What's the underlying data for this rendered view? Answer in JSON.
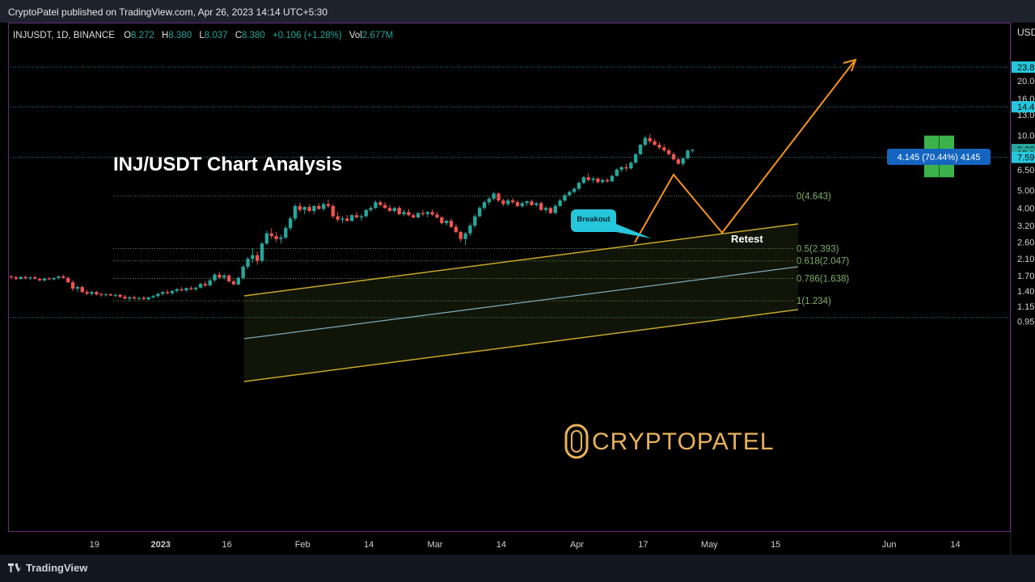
{
  "header": {
    "published": "CryptoPatel published on TradingView.com, Apr 26, 2023 14:14 UTC+5:30"
  },
  "legend": {
    "symbol": "INJUSDT, 1D, BINANCE",
    "o_label": "O",
    "o_value": "8.272",
    "h_label": "H",
    "h_value": "8.380",
    "l_label": "L",
    "l_value": "8.037",
    "c_label": "C",
    "c_value": "8.380",
    "change": "+0.106 (+1.28%)",
    "vol_label": "Vol",
    "vol_value": "2.677M"
  },
  "footer": {
    "brand": "TradingView"
  },
  "colors": {
    "up": "#26a69a",
    "down": "#ef5350",
    "accent": "#f7931a",
    "fib": "#7fb069",
    "channel": "#c8a829"
  },
  "chart_data": {
    "type": "candlestick",
    "title": "INJ/USDT Chart Analysis",
    "watermark": "CRYPTOPATEL",
    "currency": "USD",
    "y_scale": "log",
    "ylim": [
      0.85,
      27
    ],
    "x_ticks": [
      "19",
      "2023",
      "16",
      "Feb",
      "14",
      "Mar",
      "14",
      "Apr",
      "17",
      "May",
      "15",
      "Jun",
      "14"
    ],
    "y_ticks": [
      "20.00",
      "16.00",
      "13.00",
      "10.00",
      "6.50",
      "5.00",
      "4.00",
      "3.20",
      "2.60",
      "2.10",
      "1.70",
      "1.40",
      "1.15",
      "0.95"
    ],
    "price_tags": [
      {
        "label": "23.8",
        "value": 23.8,
        "color": "#26c6da"
      },
      {
        "label": "14.4",
        "value": 14.4,
        "color": "#26c6da"
      },
      {
        "label": "8.38",
        "value": 8.38,
        "color": "#26a69a"
      },
      {
        "label": "15:1",
        "value": 7.95,
        "color": "#26a69a"
      },
      {
        "label": "7.59",
        "value": 7.59,
        "color": "#26c6da"
      }
    ],
    "fib_levels": [
      {
        "label": "0(4.643)",
        "value": 4.643
      },
      {
        "label": "0.5(2.393)",
        "value": 2.393
      },
      {
        "label": "0.618(2.047)",
        "value": 2.047
      },
      {
        "label": "0.786(1.638)",
        "value": 1.638
      },
      {
        "label": "1(1.234)",
        "value": 1.234
      }
    ],
    "horizontal_levels": [
      23.8,
      14.4,
      7.59,
      1.0
    ],
    "annotations": {
      "breakout": "Breakout",
      "retest": "Retest"
    },
    "measure": {
      "label": "4.145 (70.44%) 4145",
      "low": 5.9,
      "high": 10.0
    },
    "series": [
      {
        "name": "INJUSDT",
        "ohlc": [
          [
            1.68,
            1.71,
            1.62,
            1.66
          ],
          [
            1.66,
            1.7,
            1.6,
            1.63
          ],
          [
            1.63,
            1.69,
            1.61,
            1.67
          ],
          [
            1.67,
            1.7,
            1.62,
            1.64
          ],
          [
            1.64,
            1.68,
            1.6,
            1.66
          ],
          [
            1.66,
            1.7,
            1.62,
            1.63
          ],
          [
            1.63,
            1.66,
            1.58,
            1.6
          ],
          [
            1.6,
            1.65,
            1.57,
            1.64
          ],
          [
            1.64,
            1.67,
            1.6,
            1.62
          ],
          [
            1.62,
            1.66,
            1.6,
            1.65
          ],
          [
            1.65,
            1.7,
            1.62,
            1.68
          ],
          [
            1.68,
            1.72,
            1.63,
            1.65
          ],
          [
            1.65,
            1.68,
            1.55,
            1.56
          ],
          [
            1.56,
            1.6,
            1.4,
            1.44
          ],
          [
            1.44,
            1.5,
            1.38,
            1.47
          ],
          [
            1.47,
            1.5,
            1.36,
            1.38
          ],
          [
            1.38,
            1.42,
            1.33,
            1.35
          ],
          [
            1.35,
            1.4,
            1.32,
            1.38
          ],
          [
            1.38,
            1.4,
            1.32,
            1.34
          ],
          [
            1.34,
            1.37,
            1.3,
            1.33
          ],
          [
            1.33,
            1.36,
            1.3,
            1.34
          ],
          [
            1.34,
            1.36,
            1.31,
            1.32
          ],
          [
            1.32,
            1.35,
            1.29,
            1.33
          ],
          [
            1.33,
            1.35,
            1.28,
            1.3
          ],
          [
            1.3,
            1.33,
            1.26,
            1.27
          ],
          [
            1.27,
            1.31,
            1.23,
            1.29
          ],
          [
            1.29,
            1.32,
            1.25,
            1.27
          ],
          [
            1.27,
            1.3,
            1.24,
            1.28
          ],
          [
            1.28,
            1.31,
            1.25,
            1.26
          ],
          [
            1.26,
            1.3,
            1.24,
            1.29
          ],
          [
            1.29,
            1.33,
            1.27,
            1.31
          ],
          [
            1.31,
            1.36,
            1.29,
            1.35
          ],
          [
            1.35,
            1.4,
            1.32,
            1.38
          ],
          [
            1.38,
            1.42,
            1.34,
            1.36
          ],
          [
            1.36,
            1.41,
            1.33,
            1.4
          ],
          [
            1.4,
            1.45,
            1.37,
            1.43
          ],
          [
            1.43,
            1.47,
            1.39,
            1.41
          ],
          [
            1.41,
            1.46,
            1.38,
            1.45
          ],
          [
            1.45,
            1.49,
            1.41,
            1.43
          ],
          [
            1.43,
            1.47,
            1.4,
            1.46
          ],
          [
            1.46,
            1.55,
            1.44,
            1.53
          ],
          [
            1.53,
            1.58,
            1.47,
            1.5
          ],
          [
            1.5,
            1.63,
            1.48,
            1.6
          ],
          [
            1.6,
            1.75,
            1.57,
            1.72
          ],
          [
            1.72,
            1.78,
            1.63,
            1.66
          ],
          [
            1.66,
            1.74,
            1.62,
            1.7
          ],
          [
            1.7,
            1.73,
            1.55,
            1.58
          ],
          [
            1.58,
            1.62,
            1.5,
            1.52
          ],
          [
            1.52,
            1.68,
            1.5,
            1.65
          ],
          [
            1.65,
            1.95,
            1.62,
            1.9
          ],
          [
            1.9,
            2.15,
            1.85,
            2.1
          ],
          [
            2.1,
            2.4,
            2.0,
            2.2
          ],
          [
            2.2,
            2.3,
            1.95,
            2.05
          ],
          [
            2.05,
            2.6,
            2.0,
            2.55
          ],
          [
            2.55,
            3.0,
            2.5,
            2.9
          ],
          [
            2.9,
            3.1,
            2.7,
            2.8
          ],
          [
            2.8,
            2.95,
            2.6,
            2.7
          ],
          [
            2.7,
            2.85,
            2.55,
            2.75
          ],
          [
            2.75,
            3.2,
            2.7,
            3.1
          ],
          [
            3.1,
            3.6,
            3.0,
            3.5
          ],
          [
            3.5,
            4.2,
            3.4,
            4.1
          ],
          [
            4.1,
            4.3,
            3.8,
            3.9
          ],
          [
            3.9,
            4.1,
            3.7,
            4.05
          ],
          [
            4.05,
            4.2,
            3.8,
            3.85
          ],
          [
            3.85,
            4.15,
            3.7,
            4.1
          ],
          [
            4.1,
            4.25,
            3.9,
            3.95
          ],
          [
            3.95,
            4.3,
            3.85,
            4.2
          ],
          [
            4.2,
            4.45,
            4.0,
            4.1
          ],
          [
            4.1,
            4.2,
            3.5,
            3.6
          ],
          [
            3.6,
            3.8,
            3.35,
            3.45
          ],
          [
            3.45,
            3.6,
            3.3,
            3.5
          ],
          [
            3.5,
            3.65,
            3.35,
            3.4
          ],
          [
            3.4,
            3.7,
            3.35,
            3.65
          ],
          [
            3.65,
            3.8,
            3.5,
            3.55
          ],
          [
            3.55,
            3.7,
            3.4,
            3.6
          ],
          [
            3.6,
            3.95,
            3.55,
            3.9
          ],
          [
            3.9,
            4.1,
            3.8,
            4.0
          ],
          [
            4.0,
            4.4,
            3.95,
            4.3
          ],
          [
            4.3,
            4.4,
            4.1,
            4.15
          ],
          [
            4.15,
            4.3,
            3.95,
            4.0
          ],
          [
            4.0,
            4.15,
            3.8,
            3.85
          ],
          [
            3.85,
            4.05,
            3.75,
            4.0
          ],
          [
            4.0,
            4.1,
            3.65,
            3.7
          ],
          [
            3.7,
            3.9,
            3.6,
            3.8
          ],
          [
            3.8,
            3.95,
            3.6,
            3.65
          ],
          [
            3.65,
            3.75,
            3.5,
            3.55
          ],
          [
            3.55,
            3.8,
            3.5,
            3.75
          ],
          [
            3.75,
            3.9,
            3.6,
            3.7
          ],
          [
            3.7,
            3.85,
            3.55,
            3.8
          ],
          [
            3.8,
            3.92,
            3.62,
            3.68
          ],
          [
            3.68,
            3.8,
            3.5,
            3.55
          ],
          [
            3.55,
            3.6,
            3.25,
            3.3
          ],
          [
            3.3,
            3.45,
            3.2,
            3.4
          ],
          [
            3.4,
            3.5,
            3.1,
            3.15
          ],
          [
            3.15,
            3.25,
            2.9,
            2.95
          ],
          [
            2.95,
            3.0,
            2.6,
            2.7
          ],
          [
            2.7,
            2.95,
            2.5,
            2.9
          ],
          [
            2.9,
            3.3,
            2.8,
            3.2
          ],
          [
            3.2,
            3.7,
            3.1,
            3.6
          ],
          [
            3.6,
            4.1,
            3.55,
            4.0
          ],
          [
            4.0,
            4.4,
            3.9,
            4.3
          ],
          [
            4.3,
            4.6,
            4.15,
            4.5
          ],
          [
            4.5,
            4.9,
            4.4,
            4.8
          ],
          [
            4.8,
            4.85,
            4.3,
            4.4
          ],
          [
            4.4,
            4.5,
            4.1,
            4.2
          ],
          [
            4.2,
            4.5,
            4.1,
            4.4
          ],
          [
            4.4,
            4.55,
            4.2,
            4.3
          ],
          [
            4.3,
            4.4,
            4.05,
            4.1
          ],
          [
            4.1,
            4.35,
            4.0,
            4.25
          ],
          [
            4.25,
            4.4,
            4.1,
            4.35
          ],
          [
            4.35,
            4.45,
            4.1,
            4.15
          ],
          [
            4.15,
            4.3,
            4.05,
            4.25
          ],
          [
            4.25,
            4.35,
            3.85,
            3.9
          ],
          [
            3.9,
            4.1,
            3.75,
            4.0
          ],
          [
            4.0,
            4.05,
            3.7,
            3.75
          ],
          [
            3.75,
            4.2,
            3.7,
            4.1
          ],
          [
            4.1,
            4.5,
            4.05,
            4.4
          ],
          [
            4.4,
            4.8,
            4.3,
            4.7
          ],
          [
            4.7,
            5.0,
            4.6,
            4.9
          ],
          [
            4.9,
            5.2,
            4.8,
            5.1
          ],
          [
            5.1,
            5.6,
            5.0,
            5.5
          ],
          [
            5.5,
            6.0,
            5.4,
            5.9
          ],
          [
            5.9,
            6.2,
            5.6,
            5.7
          ],
          [
            5.7,
            5.95,
            5.5,
            5.8
          ],
          [
            5.8,
            5.9,
            5.45,
            5.55
          ],
          [
            5.55,
            5.8,
            5.45,
            5.7
          ],
          [
            5.7,
            5.85,
            5.5,
            5.6
          ],
          [
            5.6,
            6.1,
            5.55,
            6.0
          ],
          [
            6.0,
            6.6,
            5.95,
            6.5
          ],
          [
            6.5,
            6.8,
            6.3,
            6.7
          ],
          [
            6.7,
            7.0,
            6.4,
            6.6
          ],
          [
            6.6,
            7.2,
            6.5,
            7.1
          ],
          [
            7.1,
            8.0,
            7.0,
            7.9
          ],
          [
            7.9,
            9.0,
            7.8,
            8.9
          ],
          [
            8.9,
            10.0,
            8.7,
            9.7
          ],
          [
            9.7,
            10.2,
            9.1,
            9.3
          ],
          [
            9.3,
            9.6,
            8.8,
            8.9
          ],
          [
            8.9,
            9.2,
            8.4,
            8.6
          ],
          [
            8.6,
            8.9,
            8.1,
            8.3
          ],
          [
            8.3,
            8.5,
            7.8,
            7.9
          ],
          [
            7.9,
            8.1,
            7.3,
            7.4
          ],
          [
            7.4,
            7.6,
            6.9,
            7.0
          ],
          [
            7.0,
            7.6,
            6.8,
            7.5
          ],
          [
            7.5,
            8.4,
            7.4,
            8.27
          ],
          [
            8.27,
            8.38,
            8.04,
            8.38
          ]
        ]
      }
    ]
  }
}
